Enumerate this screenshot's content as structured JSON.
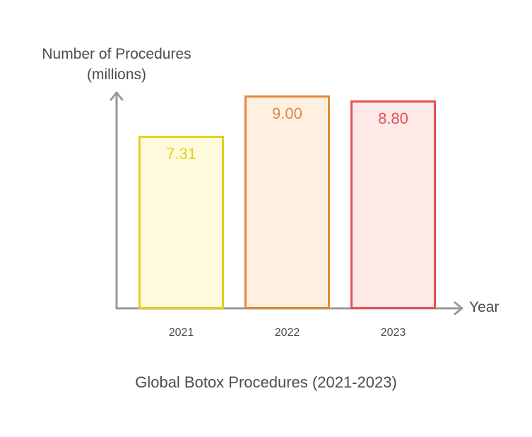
{
  "chart_data": {
    "type": "bar",
    "title": "Global Botox Procedures (2021-2023)",
    "xlabel": "Year",
    "ylabel": "Number of Procedures (millions)",
    "ylabel_lines": [
      "Number of Procedures",
      "(millions)"
    ],
    "categories": [
      "2021",
      "2022",
      "2023"
    ],
    "values": [
      7.31,
      9.0,
      8.8
    ],
    "value_labels": [
      "7.31",
      "9.00",
      "8.80"
    ],
    "colors": {
      "stroke": [
        "#e2cf1e",
        "#e08a3a",
        "#e05555"
      ],
      "fill": [
        "#fffadb",
        "#fff0e2",
        "#ffe8e8"
      ]
    },
    "grid": false,
    "legend": null,
    "ylim": [
      0,
      9.6
    ]
  }
}
